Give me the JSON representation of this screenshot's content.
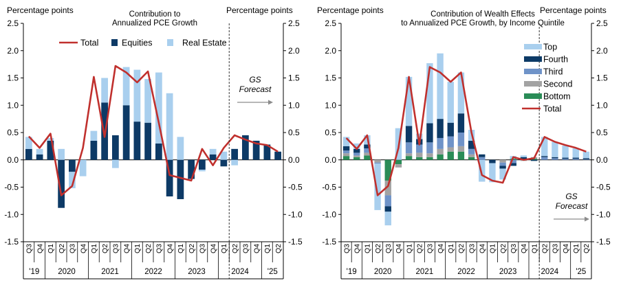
{
  "colors": {
    "equities": "#0d3a66",
    "real_estate": "#a9cfee",
    "total": "#c0302d",
    "top": "#a9cfee",
    "fourth": "#0d3a66",
    "third": "#6f93c8",
    "second": "#a3a3a3",
    "bottom": "#2a8c57",
    "axis": "#000000",
    "dashed": "#333333",
    "forecast_arrow": "#8c8c8c"
  },
  "chart_data": [
    {
      "type": "bar",
      "title_lines": [
        "Contribution to",
        "Annualized PCE Growth"
      ],
      "ylabel_left": "Percentage points",
      "ylabel_right": "Percentage points",
      "ylim": [
        -1.5,
        2.5
      ],
      "yticks": [
        "2.5",
        "2.0",
        "1.5",
        "1.0",
        "0.5",
        "0.0",
        "-0.5",
        "-1.0",
        "-1.5"
      ],
      "categories": [
        "Q3",
        "Q4",
        "Q1",
        "Q2",
        "Q3",
        "Q4",
        "Q1",
        "Q2",
        "Q3",
        "Q4",
        "Q1",
        "Q2",
        "Q3",
        "Q4",
        "Q1",
        "Q2",
        "Q3",
        "Q4",
        "Q1",
        "Q2",
        "Q3",
        "Q4",
        "Q1",
        "Q2"
      ],
      "year_labels": [
        {
          "label": "'19",
          "span": [
            0,
            2
          ]
        },
        {
          "label": "2020",
          "span": [
            2,
            6
          ]
        },
        {
          "label": "2021",
          "span": [
            6,
            10
          ]
        },
        {
          "label": "2022",
          "span": [
            10,
            14
          ]
        },
        {
          "label": "2023",
          "span": [
            14,
            18
          ]
        },
        {
          "label": "2024",
          "span": [
            18,
            22
          ]
        },
        {
          "label": "'25",
          "span": [
            22,
            24
          ]
        }
      ],
      "forecast_start_index": 19,
      "forecast_label_lines": [
        "GS",
        "Forecast"
      ],
      "legend": [
        "Total",
        "Equities",
        "Real Estate"
      ],
      "legend_position": "top",
      "grid": false,
      "series": [
        {
          "name": "Equities",
          "kind": "stacked_bar",
          "values": [
            0.2,
            0.1,
            0.35,
            -0.88,
            -0.22,
            0.0,
            0.35,
            1.05,
            0.45,
            1.0,
            0.7,
            0.68,
            0.3,
            -0.67,
            -0.72,
            -0.35,
            -0.18,
            0.1,
            -0.12,
            0.2,
            0.45,
            0.35,
            0.28,
            0.15
          ]
        },
        {
          "name": "Real Estate",
          "kind": "stacked_bar",
          "values": [
            0.22,
            0.1,
            0.05,
            0.2,
            -0.3,
            -0.3,
            0.18,
            0.45,
            -0.15,
            0.7,
            0.95,
            0.8,
            1.3,
            1.22,
            0.42,
            0.0,
            -0.03,
            0.1,
            0.15,
            -0.1,
            0.0,
            0.0,
            0.0,
            0.0
          ]
        },
        {
          "name": "Total",
          "kind": "line",
          "values": [
            0.43,
            0.22,
            0.48,
            -0.65,
            -0.48,
            0.22,
            1.52,
            0.42,
            1.72,
            1.6,
            1.42,
            1.62,
            0.68,
            -0.28,
            -0.33,
            -0.38,
            0.2,
            -0.1,
            0.22,
            0.45,
            0.37,
            0.3,
            0.27,
            0.15
          ]
        }
      ]
    },
    {
      "type": "bar",
      "title_lines": [
        "Contribution of Wealth Effects",
        "to Annualized PCE Growth, by Income Quintile"
      ],
      "ylabel_left": "Percentage points",
      "ylabel_right": "Percentage points",
      "ylim": [
        -1.5,
        2.5
      ],
      "yticks": [
        "2.5",
        "2.0",
        "1.5",
        "1.0",
        "0.5",
        "0.0",
        "-0.5",
        "-1.0",
        "-1.5"
      ],
      "categories": [
        "Q3",
        "Q4",
        "Q1",
        "Q2",
        "Q3",
        "Q4",
        "Q1",
        "Q2",
        "Q3",
        "Q4",
        "Q1",
        "Q2",
        "Q3",
        "Q4",
        "Q1",
        "Q2",
        "Q3",
        "Q4",
        "Q1",
        "Q2",
        "Q3",
        "Q4",
        "Q1",
        "Q2"
      ],
      "year_labels": [
        {
          "label": "'19",
          "span": [
            0,
            2
          ]
        },
        {
          "label": "2020",
          "span": [
            2,
            6
          ]
        },
        {
          "label": "2021",
          "span": [
            6,
            10
          ]
        },
        {
          "label": "2022",
          "span": [
            10,
            14
          ]
        },
        {
          "label": "2023",
          "span": [
            14,
            18
          ]
        },
        {
          "label": "2024",
          "span": [
            18,
            22
          ]
        },
        {
          "label": "'25",
          "span": [
            22,
            24
          ]
        }
      ],
      "forecast_start_index": 19,
      "forecast_label_lines": [
        "GS",
        "Forecast"
      ],
      "legend": [
        "Top",
        "Fourth",
        "Third",
        "Second",
        "Bottom",
        "Total"
      ],
      "legend_position": "right",
      "grid": false,
      "series": [
        {
          "name": "Bottom",
          "kind": "stacked_bar",
          "values": [
            0.07,
            0.05,
            0.08,
            0.0,
            -0.38,
            -0.08,
            0.07,
            0.05,
            0.05,
            0.1,
            0.15,
            0.15,
            0.05,
            0.0,
            0.0,
            0.0,
            0.02,
            0.0,
            0.02,
            0.0,
            0.0,
            0.0,
            0.0,
            0.0
          ]
        },
        {
          "name": "Second",
          "kind": "stacked_bar",
          "values": [
            0.05,
            0.03,
            0.05,
            -0.05,
            -0.27,
            -0.06,
            0.05,
            0.08,
            0.07,
            0.1,
            0.08,
            0.1,
            0.05,
            0.0,
            0.0,
            -0.05,
            0.0,
            -0.02,
            0.03,
            0.0,
            0.0,
            0.0,
            0.0,
            0.0
          ]
        },
        {
          "name": "Third",
          "kind": "stacked_bar",
          "values": [
            0.05,
            0.05,
            0.08,
            -0.02,
            -0.2,
            0.0,
            0.2,
            0.15,
            0.2,
            0.2,
            0.2,
            0.25,
            0.1,
            0.05,
            0.0,
            -0.06,
            -0.06,
            0.0,
            0.0,
            0.05,
            0.03,
            0.02,
            0.02,
            0.01
          ]
        },
        {
          "name": "Fourth",
          "kind": "stacked_bar",
          "values": [
            0.08,
            0.07,
            0.07,
            0.0,
            -0.1,
            0.0,
            0.3,
            0.1,
            0.35,
            0.35,
            0.25,
            0.35,
            0.15,
            0.05,
            -0.06,
            -0.05,
            -0.05,
            0.05,
            -0.02,
            0.02,
            0.02,
            0.02,
            0.02,
            0.02
          ]
        },
        {
          "name": "Top",
          "kind": "stacked_bar",
          "values": [
            0.17,
            0.1,
            0.17,
            -0.85,
            -0.25,
            0.58,
            0.9,
            0.1,
            1.1,
            1.2,
            0.75,
            0.75,
            0.2,
            -0.4,
            -0.35,
            -0.2,
            0.05,
            0.03,
            0.0,
            0.35,
            0.28,
            0.22,
            0.17,
            0.12
          ]
        },
        {
          "name": "Total",
          "kind": "line",
          "values": [
            0.4,
            0.2,
            0.45,
            -0.65,
            -0.48,
            0.22,
            1.52,
            0.28,
            1.7,
            1.6,
            1.43,
            1.6,
            0.5,
            -0.28,
            -0.38,
            -0.42,
            0.05,
            0.0,
            0.03,
            0.42,
            0.33,
            0.27,
            0.22,
            0.15
          ]
        }
      ]
    }
  ]
}
